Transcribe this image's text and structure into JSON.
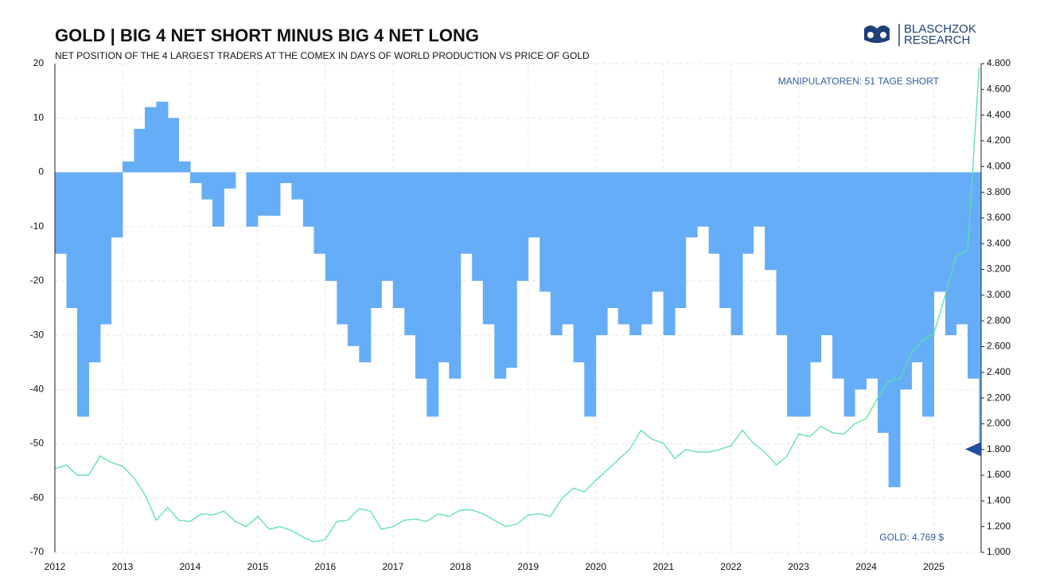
{
  "chart_data": {
    "type": "bar",
    "title": "GOLD | BIG 4 NET SHORT MINUS BIG 4 NET LONG",
    "subtitle": "NET POSITION OF THE 4 LARGEST TRADERS AT THE COMEX IN DAYS OF WORLD PRODUCTION VS PRICE OF GOLD",
    "logo": [
      "BLASCHZOK",
      "RESEARCH"
    ],
    "annotations": [
      "MANIPULATOREN: 51 TAGE SHORT",
      "GOLD: 4.769 $"
    ],
    "x": [
      2012,
      2012.17,
      2012.33,
      2012.5,
      2012.67,
      2012.83,
      2013,
      2013.17,
      2013.33,
      2013.5,
      2013.67,
      2013.83,
      2014,
      2014.17,
      2014.33,
      2014.5,
      2014.67,
      2014.83,
      2015,
      2015.17,
      2015.33,
      2015.5,
      2015.67,
      2015.83,
      2016,
      2016.17,
      2016.33,
      2016.5,
      2016.67,
      2016.83,
      2017,
      2017.17,
      2017.33,
      2017.5,
      2017.67,
      2017.83,
      2018,
      2018.17,
      2018.33,
      2018.5,
      2018.67,
      2018.83,
      2019,
      2019.17,
      2019.33,
      2019.5,
      2019.67,
      2019.83,
      2020,
      2020.17,
      2020.33,
      2020.5,
      2020.67,
      2020.83,
      2021,
      2021.17,
      2021.33,
      2021.5,
      2021.67,
      2021.83,
      2022,
      2022.17,
      2022.33,
      2022.5,
      2022.67,
      2022.83,
      2023,
      2023.17,
      2023.33,
      2023.5,
      2023.67,
      2023.83,
      2024,
      2024.17,
      2024.33,
      2024.5,
      2024.67,
      2024.83,
      2025,
      2025.17,
      2025.33,
      2025.5,
      2025.67
    ],
    "series": [
      {
        "type": "bar",
        "color": "#66adf8",
        "values": [
          -15,
          -25,
          -45,
          -35,
          -28,
          -12,
          2,
          8,
          12,
          13,
          10,
          2,
          -2,
          -5,
          -10,
          -3,
          0,
          -10,
          -8,
          -8,
          -2,
          -5,
          -10,
          -15,
          -20,
          -28,
          -32,
          -35,
          -25,
          -20,
          -25,
          -30,
          -38,
          -45,
          -35,
          -38,
          -15,
          -20,
          -28,
          -38,
          -36,
          -20,
          -12,
          -22,
          -30,
          -28,
          -35,
          -45,
          -30,
          -25,
          -28,
          -30,
          -28,
          -22,
          -30,
          -25,
          -12,
          -10,
          -15,
          -25,
          -30,
          -15,
          -10,
          -18,
          -30,
          -45,
          -45,
          -35,
          -30,
          -38,
          -45,
          -40,
          -38,
          -48,
          -58,
          -40,
          -35,
          -45,
          -22,
          -30,
          -28,
          -38,
          -51
        ]
      },
      {
        "type": "line",
        "axis": "y2",
        "color": "#57e3a2",
        "values": [
          1650,
          1680,
          1600,
          1600,
          1750,
          1700,
          1670,
          1580,
          1450,
          1250,
          1350,
          1250,
          1240,
          1300,
          1290,
          1320,
          1240,
          1200,
          1280,
          1180,
          1200,
          1170,
          1120,
          1080,
          1100,
          1240,
          1250,
          1340,
          1320,
          1180,
          1200,
          1250,
          1260,
          1240,
          1300,
          1280,
          1330,
          1330,
          1300,
          1250,
          1200,
          1220,
          1290,
          1300,
          1280,
          1420,
          1500,
          1470,
          1560,
          1640,
          1720,
          1800,
          1950,
          1880,
          1850,
          1730,
          1800,
          1780,
          1780,
          1800,
          1830,
          1950,
          1850,
          1780,
          1680,
          1750,
          1920,
          1900,
          1980,
          1930,
          1920,
          2000,
          2040,
          2200,
          2330,
          2350,
          2550,
          2650,
          2700,
          3000,
          3300,
          3350,
          4769
        ]
      }
    ],
    "xlim": [
      2012,
      2025.7
    ],
    "xticks": [
      2012,
      2013,
      2014,
      2015,
      2016,
      2017,
      2018,
      2019,
      2020,
      2021,
      2022,
      2023,
      2024,
      2025
    ],
    "ylim": [
      -70,
      20
    ],
    "yticks": [
      -70,
      -60,
      -50,
      -40,
      -30,
      -20,
      -10,
      0,
      10,
      20
    ],
    "y2lim": [
      1000,
      4800
    ],
    "y2ticks": [
      {
        "value": 1000,
        "label": "1.000"
      },
      {
        "value": 1200,
        "label": "1.200"
      },
      {
        "value": 1400,
        "label": "1.400"
      },
      {
        "value": 1600,
        "label": "1.600"
      },
      {
        "value": 1800,
        "label": "1.800"
      },
      {
        "value": 2000,
        "label": "2.000"
      },
      {
        "value": 2200,
        "label": "2.200"
      },
      {
        "value": 2400,
        "label": "2.400"
      },
      {
        "value": 2600,
        "label": "2.600"
      },
      {
        "value": 2800,
        "label": "2.800"
      },
      {
        "value": 3000,
        "label": "3.000"
      },
      {
        "value": 3200,
        "label": "3.200"
      },
      {
        "value": 3400,
        "label": "3.400"
      },
      {
        "value": 3600,
        "label": "3.600"
      },
      {
        "value": 3800,
        "label": "3.800"
      },
      {
        "value": 4000,
        "label": "4.000"
      },
      {
        "value": 4200,
        "label": "4.200"
      },
      {
        "value": 4400,
        "label": "4.400"
      },
      {
        "value": 4600,
        "label": "4.600"
      },
      {
        "value": 4800,
        "label": "4.800"
      }
    ],
    "grid": true
  }
}
